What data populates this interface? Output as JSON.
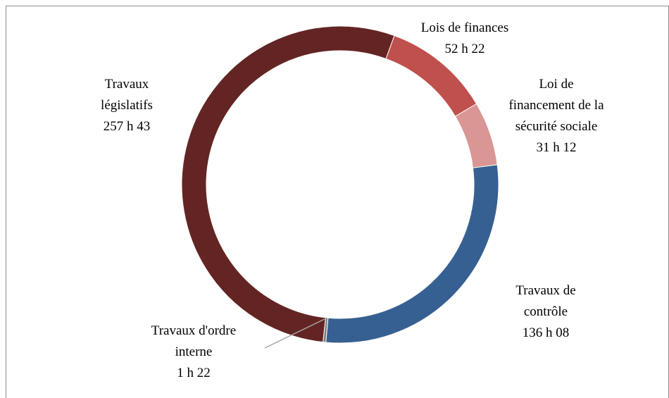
{
  "chart_data": {
    "type": "donut",
    "categories": [
      "Lois de finances",
      "Loi de financement de la sécurité sociale",
      "Travaux de contrôle",
      "Travaux d'ordre interne",
      "Travaux législatifs"
    ],
    "values": [
      3142,
      1872,
      8168,
      82,
      15463
    ],
    "value_labels": [
      "52 h 22",
      "31 h 12",
      "136 h 08",
      "1 h 22",
      "257 h 43"
    ],
    "colors": [
      "#c0504d",
      "#d99694",
      "#376092",
      "#7f7f7f",
      "#632523"
    ],
    "start_angle": 20
  }
}
